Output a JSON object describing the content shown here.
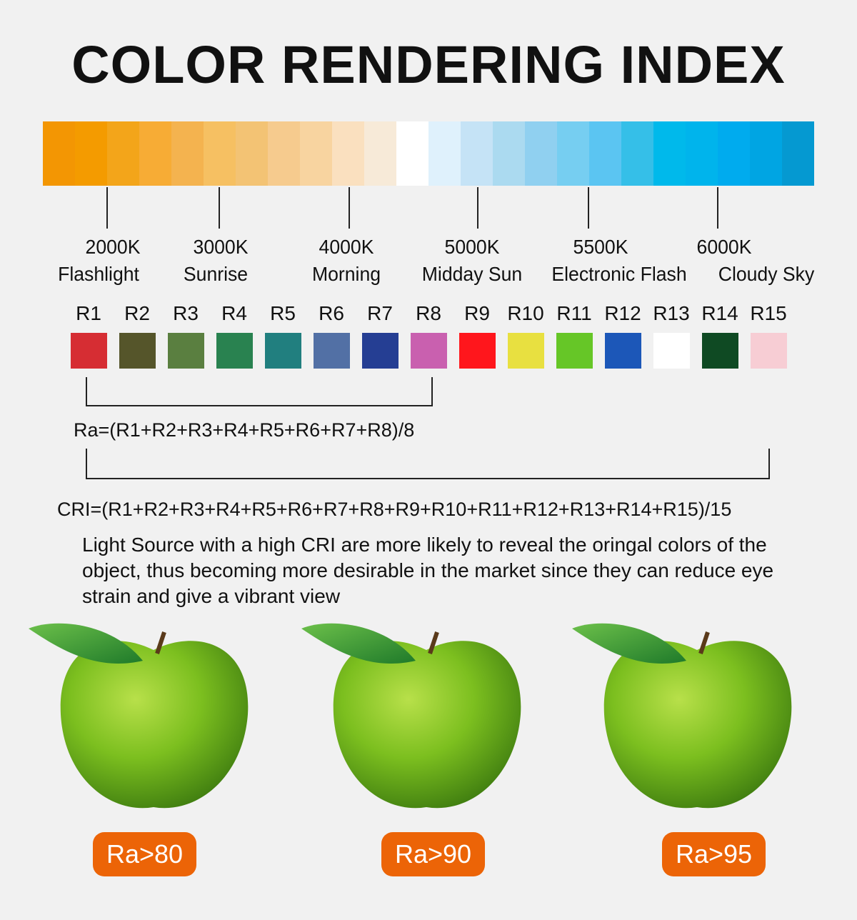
{
  "title": "COLOR RENDERING INDEX",
  "spectrum_colors": [
    "#F39603",
    "#F49B00",
    "#F3A51A",
    "#F7AC35",
    "#F4B34F",
    "#F6C062",
    "#F3C374",
    "#F6CB8E",
    "#F8D4A0",
    "#FAE0BF",
    "#F7EAD8",
    "#FFFFFF",
    "#DFF1FC",
    "#C5E3F6",
    "#ABDAF0",
    "#90D0F0",
    "#76CEF1",
    "#5BC5F2",
    "#35BFE8",
    "#00B9EB",
    "#00B4EC",
    "#00ABEE",
    "#00A5E3",
    "#0599D1"
  ],
  "temperatures": [
    {
      "kelvin": "2000K",
      "name": "Flashlight"
    },
    {
      "kelvin": "3000K",
      "name": "Sunrise"
    },
    {
      "kelvin": "4000K",
      "name": "Morning"
    },
    {
      "kelvin": "5000K",
      "name": "Midday Sun"
    },
    {
      "kelvin": "5500K",
      "name": "Electronic Flash"
    },
    {
      "kelvin": "6000K",
      "name": "Cloudy Sky"
    }
  ],
  "samples": [
    {
      "label": "R1",
      "color": "#D62D33"
    },
    {
      "label": "R2",
      "color": "#55552A"
    },
    {
      "label": "R3",
      "color": "#5A7F40"
    },
    {
      "label": "R4",
      "color": "#298250"
    },
    {
      "label": "R5",
      "color": "#217F7F"
    },
    {
      "label": "R6",
      "color": "#5270A5"
    },
    {
      "label": "R7",
      "color": "#253E93"
    },
    {
      "label": "R8",
      "color": "#C960AF"
    },
    {
      "label": "R9",
      "color": "#FF161C"
    },
    {
      "label": "R10",
      "color": "#E8E040"
    },
    {
      "label": "R11",
      "color": "#66C627"
    },
    {
      "label": "R12",
      "color": "#1C57B8"
    },
    {
      "label": "R13",
      "color": "#FFFFFF"
    },
    {
      "label": "R14",
      "color": "#0F4A23"
    },
    {
      "label": "R15",
      "color": "#F7CDD4"
    }
  ],
  "ra_formula": "Ra=(R1+R2+R3+R4+R5+R6+R7+R8)/8",
  "cri_formula": "CRI=(R1+R2+R3+R4+R5+R6+R7+R8+R9+R10+R11+R12+R13+R14+R15)/15",
  "description": "Light Source with a high CRI are more likely to reveal the oringal colors of the object, thus becoming more desirable in the market since they can reduce eye strain and give a vibrant view",
  "badges": [
    "Ra>80",
    "Ra>90",
    "Ra>95"
  ],
  "badge_color": "#EC6407"
}
